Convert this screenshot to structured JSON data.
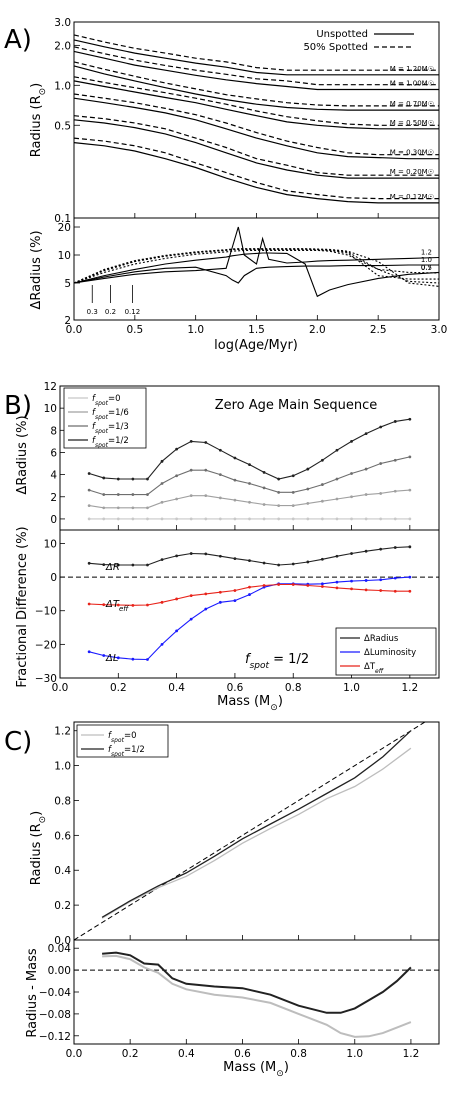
{
  "chart_data": [
    {
      "panel": "A)",
      "type": "line",
      "xlabel": "log(Age/Myr)",
      "xlim": [
        0.0,
        3.0
      ],
      "xticks": [
        "0.0",
        "0.5",
        "1.0",
        "1.5",
        "2.0",
        "2.5",
        "3.0"
      ],
      "top": {
        "ylabel": "Radius (R☉)",
        "yscale": "log",
        "ylim": [
          0.1,
          3.0
        ],
        "yticks": [
          "0.1",
          "0.5",
          "1.0",
          "2.0",
          "3.0"
        ],
        "legend": [
          {
            "label": "Unspotted",
            "style": "solid"
          },
          {
            "label": "50% Spotted",
            "style": "dashed"
          }
        ],
        "legend_position": "top-right",
        "x": [
          0.0,
          0.25,
          0.5,
          0.75,
          1.0,
          1.25,
          1.5,
          1.75,
          2.0,
          2.25,
          2.5,
          2.75,
          3.0
        ],
        "series": [
          {
            "label": "M = 1.20M☉",
            "unspotted": [
              2.2,
              1.95,
              1.75,
              1.6,
              1.47,
              1.37,
              1.25,
              1.2,
              1.2,
              1.2,
              1.2,
              1.2,
              1.2
            ],
            "spotted": [
              2.4,
              2.12,
              1.9,
              1.75,
              1.6,
              1.5,
              1.36,
              1.3,
              1.3,
              1.3,
              1.3,
              1.3,
              1.3
            ]
          },
          {
            "label": "M = 1.00M☉",
            "unspotted": [
              1.8,
              1.6,
              1.42,
              1.3,
              1.19,
              1.1,
              1.03,
              0.98,
              0.93,
              0.93,
              0.93,
              0.93,
              0.93
            ],
            "spotted": [
              1.95,
              1.73,
              1.55,
              1.41,
              1.3,
              1.21,
              1.12,
              1.08,
              1.01,
              1.01,
              1.01,
              1.01,
              1.01
            ]
          },
          {
            "label": "M = 0.70M☉",
            "unspotted": [
              1.4,
              1.22,
              1.08,
              0.96,
              0.86,
              0.78,
              0.72,
              0.68,
              0.66,
              0.65,
              0.65,
              0.65,
              0.65
            ],
            "spotted": [
              1.5,
              1.32,
              1.17,
              1.04,
              0.94,
              0.85,
              0.79,
              0.74,
              0.71,
              0.7,
              0.7,
              0.7,
              0.7
            ]
          },
          {
            "label": "M = 0.50M☉",
            "unspotted": [
              1.08,
              0.98,
              0.89,
              0.81,
              0.74,
              0.66,
              0.59,
              0.53,
              0.5,
              0.48,
              0.47,
              0.47,
              0.47
            ],
            "spotted": [
              1.16,
              1.05,
              0.96,
              0.88,
              0.8,
              0.72,
              0.64,
              0.58,
              0.54,
              0.51,
              0.5,
              0.5,
              0.5
            ]
          },
          {
            "label": "M = 0.30M☉",
            "unspotted": [
              0.8,
              0.74,
              0.68,
              0.62,
              0.55,
              0.47,
              0.4,
              0.35,
              0.31,
              0.29,
              0.285,
              0.28,
              0.28
            ],
            "spotted": [
              0.86,
              0.8,
              0.74,
              0.67,
              0.6,
              0.52,
              0.44,
              0.38,
              0.34,
              0.31,
              0.3,
              0.3,
              0.3
            ]
          },
          {
            "label": "M = 0.20M☉",
            "unspotted": [
              0.55,
              0.52,
              0.48,
              0.43,
              0.37,
              0.31,
              0.26,
              0.23,
              0.21,
              0.2,
              0.2,
              0.2,
              0.2
            ],
            "spotted": [
              0.59,
              0.56,
              0.52,
              0.47,
              0.4,
              0.34,
              0.28,
              0.25,
              0.22,
              0.21,
              0.21,
              0.21,
              0.21
            ]
          },
          {
            "label": "M = 0.12M☉",
            "unspotted": [
              0.37,
              0.35,
              0.32,
              0.28,
              0.24,
              0.2,
              0.17,
              0.15,
              0.14,
              0.133,
              0.13,
              0.13,
              0.13
            ],
            "spotted": [
              0.4,
              0.38,
              0.35,
              0.31,
              0.26,
              0.22,
              0.185,
              0.16,
              0.15,
              0.142,
              0.14,
              0.14,
              0.14
            ]
          }
        ]
      },
      "bottom": {
        "ylabel": "ΔRadius (%)",
        "yscale": "log",
        "ylim": [
          2,
          25
        ],
        "yticks": [
          "2",
          "5",
          "10",
          "20"
        ],
        "curve_labels": [
          "1.2",
          "1.0",
          "0.7",
          "0.5",
          "0.3",
          "0.2",
          "0.12"
        ],
        "x": [
          0.0,
          0.25,
          0.5,
          0.75,
          1.0,
          1.25,
          1.3,
          1.35,
          1.4,
          1.5,
          1.55,
          1.6,
          1.75,
          1.9,
          2.0,
          2.1,
          2.25,
          2.5,
          2.75,
          3.0
        ],
        "series": [
          {
            "name": "1.2",
            "values": [
              5.0,
              5.6,
              6.2,
              6.6,
              6.8,
              7.2,
              12,
              20,
              10,
              8,
              15,
              9,
              8.2,
              8.4,
              8.6,
              8.7,
              8.8,
              9.0,
              9.2,
              9.4
            ]
          },
          {
            "name": "1.0",
            "values": [
              5.0,
              5.8,
              6.6,
              7.2,
              7.4,
              6.0,
              5.4,
              5.0,
              6.0,
              7.2,
              7.3,
              7.4,
              7.5,
              7.6,
              7.6,
              7.6,
              7.7,
              7.7,
              7.8,
              7.8
            ]
          },
          {
            "name": "0.7",
            "values": [
              5.0,
              6.0,
              7.0,
              8.0,
              8.8,
              9.5,
              9.8,
              10,
              10.2,
              10.4,
              10.5,
              10.5,
              10.4,
              8.0,
              3.6,
              4.2,
              4.8,
              5.6,
              6.2,
              6.5
            ]
          },
          {
            "name": "0.5",
            "values": [
              5.0,
              6.5,
              8.0,
              9.2,
              10.2,
              10.8,
              11,
              11.1,
              11.2,
              11.2,
              11.2,
              11.2,
              11.2,
              11.2,
              11.2,
              11,
              10,
              7.0,
              6.5,
              6.4
            ]
          },
          {
            "name": "0.3",
            "values": [
              5.0,
              6.8,
              8.5,
              9.7,
              10.6,
              11.2,
              11.4,
              11.5,
              11.5,
              11.5,
              11.5,
              11.5,
              11.5,
              11.5,
              11.4,
              11.2,
              10.5,
              6.0,
              5.5,
              5.5
            ]
          },
          {
            "name": "0.2",
            "values": [
              5.0,
              6.9,
              8.6,
              9.8,
              10.7,
              11.3,
              11.5,
              11.6,
              11.6,
              11.6,
              11.6,
              11.6,
              11.6,
              11.6,
              11.5,
              11.3,
              10.8,
              7.0,
              5.2,
              5.0
            ]
          },
          {
            "name": "0.12",
            "values": [
              5.0,
              7.0,
              8.7,
              9.9,
              10.8,
              11.4,
              11.6,
              11.7,
              11.7,
              11.7,
              11.7,
              11.7,
              11.7,
              11.7,
              11.6,
              11.5,
              11.0,
              8.5,
              5.0,
              4.6
            ]
          }
        ],
        "age_markers": [
          {
            "label": "0.3",
            "x": 0.15
          },
          {
            "label": "0.2",
            "x": 0.3
          },
          {
            "label": "0.12",
            "x": 0.48
          }
        ]
      }
    },
    {
      "panel": "B)",
      "type": "line",
      "xlabel": "Mass (M☉)",
      "xlim": [
        0.0,
        1.3
      ],
      "xticks": [
        "0.0",
        "0.2",
        "0.4",
        "0.6",
        "0.8",
        "1.0",
        "1.2"
      ],
      "mass": [
        0.1,
        0.15,
        0.2,
        0.25,
        0.3,
        0.35,
        0.4,
        0.45,
        0.5,
        0.55,
        0.6,
        0.65,
        0.7,
        0.75,
        0.8,
        0.85,
        0.9,
        0.95,
        1.0,
        1.05,
        1.1,
        1.15,
        1.2
      ],
      "top": {
        "title": "Zero Age Main Sequence",
        "ylabel": "ΔRadius (%)",
        "ylim": [
          -1,
          12
        ],
        "yticks": [
          "0",
          "2",
          "4",
          "6",
          "8",
          "10",
          "12"
        ],
        "legend_position": "top-left",
        "series": [
          {
            "name": "f_spot = 0",
            "color": "#c8c8c8",
            "values": [
              0,
              0,
              0,
              0,
              0,
              0,
              0,
              0,
              0,
              0,
              0,
              0,
              0,
              0,
              0,
              0,
              0,
              0,
              0,
              0,
              0,
              0,
              0
            ]
          },
          {
            "name": "f_spot = 1/6",
            "color": "#a0a0a0",
            "values": [
              1.2,
              1.0,
              1.0,
              1.0,
              1.0,
              1.5,
              1.8,
              2.1,
              2.1,
              1.9,
              1.7,
              1.5,
              1.3,
              1.2,
              1.2,
              1.4,
              1.6,
              1.8,
              2.0,
              2.2,
              2.3,
              2.5,
              2.6
            ]
          },
          {
            "name": "f_spot = 1/3",
            "color": "#6e6e6e",
            "values": [
              2.6,
              2.2,
              2.2,
              2.2,
              2.2,
              3.2,
              3.9,
              4.4,
              4.4,
              4.0,
              3.5,
              3.2,
              2.8,
              2.4,
              2.4,
              2.7,
              3.1,
              3.6,
              4.1,
              4.5,
              5.0,
              5.3,
              5.6
            ]
          },
          {
            "name": "f_spot = 1/2",
            "color": "#222222",
            "values": [
              4.1,
              3.7,
              3.6,
              3.6,
              3.6,
              5.2,
              6.3,
              7.0,
              6.9,
              6.2,
              5.5,
              4.9,
              4.2,
              3.6,
              3.9,
              4.5,
              5.3,
              6.2,
              7.0,
              7.7,
              8.3,
              8.8,
              9.0
            ]
          }
        ]
      },
      "bottom": {
        "ylabel": "Fractional Difference (%)",
        "ylim": [
          -30,
          14
        ],
        "yticks": [
          "−30",
          "−20",
          "−10",
          "0",
          "10"
        ],
        "annotation": "f_spot = 1/2",
        "legend_position": "bottom-right",
        "series": [
          {
            "name": "ΔRadius",
            "curve_label": "ΔR",
            "color": "#222222",
            "values": [
              4.1,
              3.7,
              3.6,
              3.6,
              3.6,
              5.2,
              6.3,
              7.0,
              6.9,
              6.2,
              5.5,
              4.9,
              4.2,
              3.6,
              3.9,
              4.5,
              5.3,
              6.2,
              7.0,
              7.7,
              8.3,
              8.8,
              9.0
            ]
          },
          {
            "name": "ΔLuminosity",
            "curve_label": "ΔL",
            "color": "#1a1aff",
            "values": [
              -22.2,
              -23.3,
              -24.0,
              -24.4,
              -24.5,
              -20.0,
              -16.0,
              -12.5,
              -9.5,
              -7.5,
              -7.0,
              -5.2,
              -3.0,
              -2.0,
              -2.0,
              -2.1,
              -2.0,
              -1.5,
              -1.2,
              -1.0,
              -0.8,
              -0.3,
              0.0
            ]
          },
          {
            "name": "ΔTeff",
            "curve_label": "ΔTeff",
            "color": "#e8231a",
            "values": [
              -8.0,
              -8.2,
              -8.3,
              -8.4,
              -8.3,
              -7.5,
              -6.5,
              -5.5,
              -5.0,
              -4.5,
              -4.0,
              -3.0,
              -2.5,
              -2.2,
              -2.2,
              -2.5,
              -2.8,
              -3.2,
              -3.5,
              -3.8,
              -4.0,
              -4.2,
              -4.2
            ]
          }
        ]
      }
    },
    {
      "panel": "C)",
      "type": "line",
      "xlabel": "Mass (M☉)",
      "xlim": [
        0.0,
        1.3
      ],
      "xticks": [
        "0.0",
        "0.2",
        "0.4",
        "0.6",
        "0.8",
        "1.0",
        "1.2"
      ],
      "top": {
        "ylabel": "Radius (R☉)",
        "ylim": [
          0.0,
          1.25
        ],
        "yticks": [
          "0.0",
          "0.2",
          "0.4",
          "0.6",
          "0.8",
          "1.0",
          "1.2"
        ],
        "legend_position": "top-left",
        "reference_line": "dashed y = x",
        "series": [
          {
            "name": "f_spot = 0",
            "color": "#bdbdbd",
            "x": [
              0.1,
              0.2,
              0.3,
              0.4,
              0.5,
              0.6,
              0.7,
              0.8,
              0.9,
              1.0,
              1.1,
              1.2
            ],
            "values": [
              0.125,
              0.22,
              0.3,
              0.365,
              0.455,
              0.555,
              0.64,
              0.72,
              0.81,
              0.88,
              0.98,
              1.1
            ]
          },
          {
            "name": "f_spot = 1/2",
            "color": "#222222",
            "x": [
              0.1,
              0.2,
              0.3,
              0.4,
              0.5,
              0.6,
              0.7,
              0.8,
              0.9,
              1.0,
              1.1,
              1.2
            ],
            "values": [
              0.13,
              0.225,
              0.31,
              0.385,
              0.48,
              0.58,
              0.665,
              0.75,
              0.84,
              0.93,
              1.05,
              1.2
            ]
          }
        ]
      },
      "bottom": {
        "ylabel": "Radius - Mass",
        "ylim": [
          -0.135,
          0.055
        ],
        "yticks": [
          "−0.12",
          "−0.08",
          "−0.04",
          "0.00",
          "0.04"
        ],
        "reference_line": "dashed y = 0",
        "series": [
          {
            "name": "f_spot = 0",
            "color": "#bdbdbd",
            "x": [
              0.1,
              0.15,
              0.2,
              0.25,
              0.3,
              0.35,
              0.4,
              0.5,
              0.6,
              0.7,
              0.8,
              0.9,
              0.95,
              1.0,
              1.05,
              1.1,
              1.15,
              1.2
            ],
            "values": [
              0.025,
              0.026,
              0.02,
              0.005,
              -0.005,
              -0.025,
              -0.035,
              -0.045,
              -0.05,
              -0.06,
              -0.08,
              -0.1,
              -0.115,
              -0.122,
              -0.121,
              -0.115,
              -0.105,
              -0.095
            ]
          },
          {
            "name": "f_spot = 1/2",
            "color": "#222222",
            "x": [
              0.1,
              0.15,
              0.2,
              0.25,
              0.3,
              0.35,
              0.4,
              0.5,
              0.6,
              0.7,
              0.8,
              0.9,
              0.95,
              1.0,
              1.05,
              1.1,
              1.15,
              1.2
            ],
            "values": [
              0.03,
              0.032,
              0.027,
              0.012,
              0.01,
              -0.015,
              -0.025,
              -0.03,
              -0.033,
              -0.045,
              -0.065,
              -0.078,
              -0.078,
              -0.07,
              -0.055,
              -0.04,
              -0.02,
              0.005
            ]
          }
        ]
      }
    }
  ],
  "texts": {
    "A": {
      "panel": "A)",
      "xlabel": "log(Age/Myr)",
      "ylabel_top": "Radius (R",
      "ylabel_bottom": "ΔRadius (%)",
      "leg1": "Unspotted",
      "leg2": "50% Spotted"
    },
    "B": {
      "panel": "B)",
      "title": "Zero Age Main Sequence",
      "xlabel": "Mass (M",
      "ylabel_top": "ΔRadius (%)",
      "ylabel_bottom": "Fractional Difference (%)",
      "annot": "= 1/2",
      "leg_r": "ΔRadius",
      "leg_l": "ΔLuminosity"
    },
    "C": {
      "panel": "C)",
      "xlabel": "Mass (M",
      "ylabel_top": "Radius (R",
      "ylabel_bottom": "Radius - Mass"
    }
  }
}
